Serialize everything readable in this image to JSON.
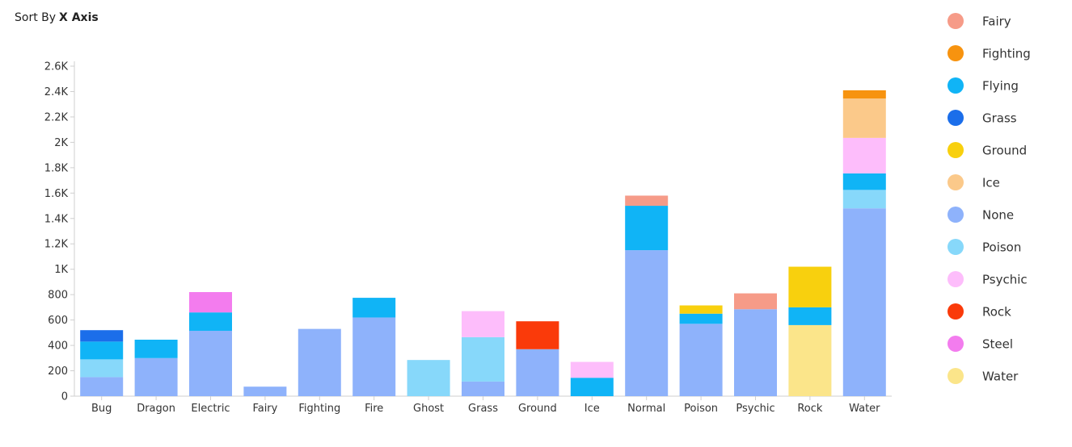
{
  "sort": {
    "prefix": "Sort By",
    "value": "X Axis"
  },
  "chart_data": {
    "type": "bar",
    "stacked": true,
    "categories": [
      "Bug",
      "Dragon",
      "Electric",
      "Fairy",
      "Fighting",
      "Fire",
      "Ghost",
      "Grass",
      "Ground",
      "Ice",
      "Normal",
      "Poison",
      "Psychic",
      "Rock",
      "Water"
    ],
    "ylim": [
      0,
      2600
    ],
    "yticks": [
      0,
      200,
      400,
      600,
      800,
      1000,
      1200,
      1400,
      1600,
      1800,
      2000,
      2200,
      2400,
      2600
    ],
    "ytick_labels": [
      "0",
      "200",
      "400",
      "600",
      "800",
      "1K",
      "1.2K",
      "1.4K",
      "1.6K",
      "1.8K",
      "2K",
      "2.2K",
      "2.4K",
      "2.6K"
    ],
    "legend_position": "right",
    "grid": false,
    "series": [
      {
        "name": "Water",
        "color": "#FBE58A",
        "values": [
          0,
          0,
          0,
          0,
          0,
          0,
          0,
          0,
          0,
          0,
          0,
          0,
          0,
          560,
          0
        ]
      },
      {
        "name": "None",
        "color": "#8EB2FB",
        "values": [
          150,
          300,
          515,
          75,
          530,
          620,
          0,
          115,
          370,
          0,
          1150,
          570,
          685,
          0,
          1480
        ]
      },
      {
        "name": "Poison",
        "color": "#87D8FA",
        "values": [
          140,
          0,
          0,
          0,
          0,
          0,
          285,
          350,
          0,
          0,
          0,
          0,
          0,
          0,
          145
        ]
      },
      {
        "name": "Flying",
        "color": "#10B4F6",
        "values": [
          140,
          145,
          145,
          0,
          0,
          155,
          0,
          0,
          0,
          145,
          350,
          80,
          0,
          140,
          130
        ]
      },
      {
        "name": "Grass",
        "color": "#1B6EEA",
        "values": [
          90,
          0,
          0,
          0,
          0,
          0,
          0,
          0,
          0,
          0,
          0,
          0,
          0,
          0,
          0
        ]
      },
      {
        "name": "Steel",
        "color": "#F37CEE",
        "values": [
          0,
          0,
          160,
          0,
          0,
          0,
          0,
          0,
          0,
          0,
          0,
          0,
          0,
          0,
          0
        ]
      },
      {
        "name": "Psychic",
        "color": "#FDBDFB",
        "values": [
          0,
          0,
          0,
          0,
          0,
          0,
          0,
          205,
          0,
          125,
          0,
          0,
          0,
          0,
          280
        ]
      },
      {
        "name": "Rock",
        "color": "#FA3A0A",
        "values": [
          0,
          0,
          0,
          0,
          0,
          0,
          0,
          0,
          220,
          0,
          0,
          0,
          0,
          0,
          0
        ]
      },
      {
        "name": "Fairy",
        "color": "#F69B88",
        "values": [
          0,
          0,
          0,
          0,
          0,
          0,
          0,
          0,
          0,
          0,
          80,
          0,
          125,
          0,
          0
        ]
      },
      {
        "name": "Ground",
        "color": "#F8D00E",
        "values": [
          0,
          0,
          0,
          0,
          0,
          0,
          0,
          0,
          0,
          0,
          0,
          65,
          0,
          320,
          0
        ]
      },
      {
        "name": "Ice",
        "color": "#FBC98A",
        "values": [
          0,
          0,
          0,
          0,
          0,
          0,
          0,
          0,
          0,
          0,
          0,
          0,
          0,
          0,
          310
        ]
      },
      {
        "name": "Fighting",
        "color": "#F7930F",
        "values": [
          0,
          0,
          0,
          0,
          0,
          0,
          0,
          0,
          0,
          0,
          0,
          0,
          0,
          0,
          65
        ]
      }
    ],
    "legend": [
      {
        "name": "Fairy",
        "color": "#F69B88"
      },
      {
        "name": "Fighting",
        "color": "#F7930F"
      },
      {
        "name": "Flying",
        "color": "#10B4F6"
      },
      {
        "name": "Grass",
        "color": "#1B6EEA"
      },
      {
        "name": "Ground",
        "color": "#F8D00E"
      },
      {
        "name": "Ice",
        "color": "#FBC98A"
      },
      {
        "name": "None",
        "color": "#8EB2FB"
      },
      {
        "name": "Poison",
        "color": "#87D8FA"
      },
      {
        "name": "Psychic",
        "color": "#FDBDFB"
      },
      {
        "name": "Rock",
        "color": "#FA3A0A"
      },
      {
        "name": "Steel",
        "color": "#F37CEE"
      },
      {
        "name": "Water",
        "color": "#FBE58A"
      }
    ]
  }
}
